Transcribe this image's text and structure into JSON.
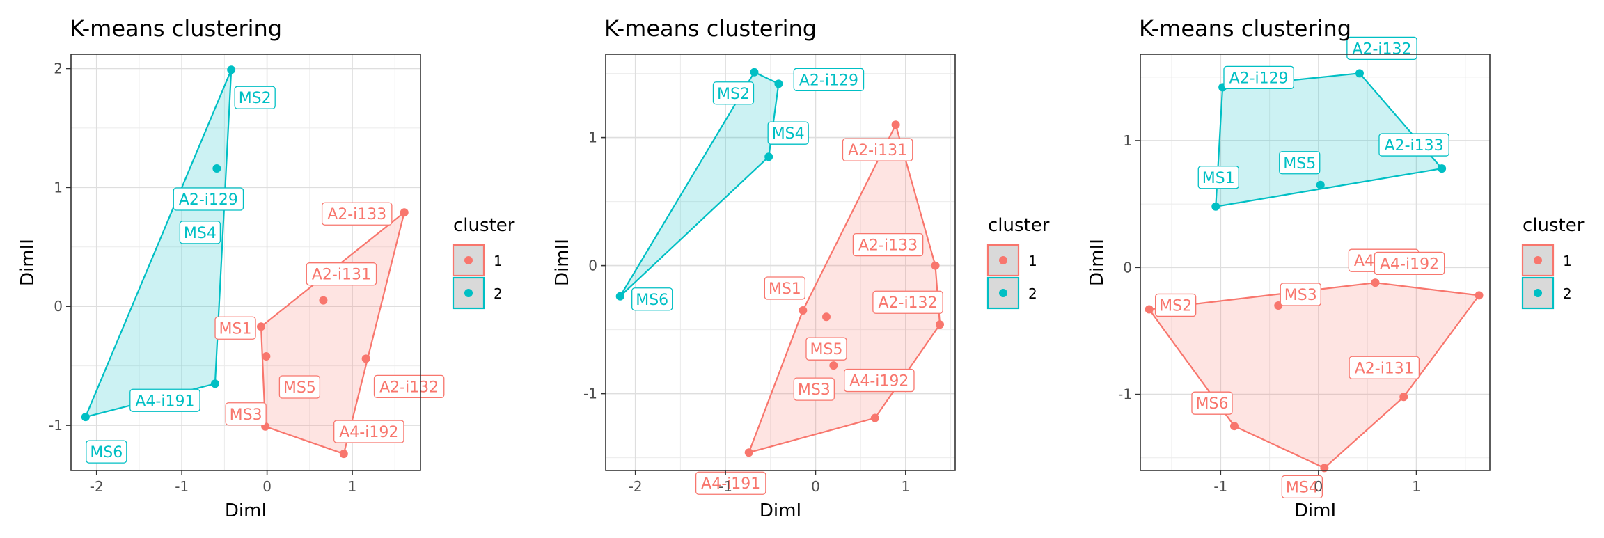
{
  "colors": {
    "cluster1": "#F8766D",
    "cluster1_fill": "#FFE1DF",
    "cluster2": "#00BFC4",
    "cluster2_fill": "#CCEFF1",
    "grid": "#EBEBEB",
    "panel_border": "#333333",
    "legend_key_bg": "#D9D9D9"
  },
  "chart_data": [
    {
      "type": "scatter",
      "title": "K-means clustering",
      "xlabel": "DimI",
      "ylabel": "DimII",
      "xlim": [
        -2.3,
        1.8
      ],
      "ylim": [
        -1.38,
        2.12
      ],
      "xticks": [
        -2,
        -1,
        0,
        1
      ],
      "yticks": [
        -1,
        0,
        1,
        2
      ],
      "grid": true,
      "legend": {
        "title": "cluster",
        "position": "right",
        "entries": [
          "1",
          "2"
        ]
      },
      "points": [
        {
          "label": "MS6",
          "x": -2.13,
          "y": -0.93,
          "cluster": "2"
        },
        {
          "label": "MS2",
          "x": -0.42,
          "y": 1.99,
          "cluster": "2"
        },
        {
          "label": "A2-i129",
          "x": -0.59,
          "y": 1.16,
          "cluster": "2"
        },
        {
          "label": "MS4",
          "x": -0.59,
          "y": 0.88,
          "cluster": "2"
        },
        {
          "label": "A4-i191",
          "x": -0.61,
          "y": -0.65,
          "cluster": "2"
        },
        {
          "label": "A2-i133",
          "x": 1.61,
          "y": 0.79,
          "cluster": "1"
        },
        {
          "label": "A2-i131",
          "x": 0.66,
          "y": 0.05,
          "cluster": "1"
        },
        {
          "label": "MS1",
          "x": -0.07,
          "y": -0.17,
          "cluster": "1"
        },
        {
          "label": "MS5",
          "x": -0.01,
          "y": -0.42,
          "cluster": "1"
        },
        {
          "label": "A2-i132",
          "x": 1.16,
          "y": -0.44,
          "cluster": "1"
        },
        {
          "label": "MS3",
          "x": -0.02,
          "y": -1.01,
          "cluster": "1"
        },
        {
          "label": "A4-i192",
          "x": 0.9,
          "y": -1.24,
          "cluster": "1"
        }
      ]
    },
    {
      "type": "scatter",
      "title": "K-means clustering",
      "xlabel": "DimI",
      "ylabel": "DimII",
      "xlim": [
        -2.33,
        1.55
      ],
      "ylim": [
        -1.6,
        1.65
      ],
      "xticks": [
        -2,
        -1,
        0,
        1
      ],
      "yticks": [
        -1,
        0,
        1
      ],
      "grid": true,
      "legend": {
        "title": "cluster",
        "position": "right",
        "entries": [
          "1",
          "2"
        ]
      },
      "points": [
        {
          "label": "MS6",
          "x": -2.17,
          "y": -0.24,
          "cluster": "2"
        },
        {
          "label": "MS2",
          "x": -0.68,
          "y": 1.51,
          "cluster": "2"
        },
        {
          "label": "A2-i129",
          "x": -0.41,
          "y": 1.42,
          "cluster": "2"
        },
        {
          "label": "MS4",
          "x": -0.52,
          "y": 0.85,
          "cluster": "2"
        },
        {
          "label": "A2-i131",
          "x": 0.89,
          "y": 1.1,
          "cluster": "1"
        },
        {
          "label": "A2-i133",
          "x": 1.33,
          "y": 0.0,
          "cluster": "1"
        },
        {
          "label": "MS1",
          "x": -0.14,
          "y": -0.35,
          "cluster": "1"
        },
        {
          "label": "MS5",
          "x": 0.12,
          "y": -0.4,
          "cluster": "1"
        },
        {
          "label": "A2-i132",
          "x": 1.38,
          "y": -0.46,
          "cluster": "1"
        },
        {
          "label": "MS3",
          "x": 0.2,
          "y": -0.78,
          "cluster": "1"
        },
        {
          "label": "A4-i192",
          "x": 0.66,
          "y": -1.19,
          "cluster": "1"
        },
        {
          "label": "A4-i191",
          "x": -0.74,
          "y": -1.46,
          "cluster": "1"
        }
      ]
    },
    {
      "type": "scatter",
      "title": "K-means clustering",
      "xlabel": "DimI",
      "ylabel": "DimII",
      "xlim": [
        -1.82,
        1.75
      ],
      "ylim": [
        -1.6,
        1.68
      ],
      "xticks": [
        -1,
        0,
        1
      ],
      "yticks": [
        -1,
        0,
        1
      ],
      "grid": true,
      "legend": {
        "title": "cluster",
        "position": "right",
        "entries": [
          "1",
          "2"
        ]
      },
      "points": [
        {
          "label": "MS1",
          "x": -1.05,
          "y": 0.48,
          "cluster": "2"
        },
        {
          "label": "A2-i129",
          "x": -0.98,
          "y": 1.42,
          "cluster": "2"
        },
        {
          "label": "A2-i132",
          "x": 0.42,
          "y": 1.53,
          "cluster": "2"
        },
        {
          "label": "A2-i133",
          "x": 1.26,
          "y": 0.78,
          "cluster": "2"
        },
        {
          "label": "MS5",
          "x": 0.02,
          "y": 0.65,
          "cluster": "2"
        },
        {
          "label": "MS2",
          "x": -1.73,
          "y": -0.33,
          "cluster": "1"
        },
        {
          "label": "MS3",
          "x": -0.41,
          "y": -0.3,
          "cluster": "1"
        },
        {
          "label": "A4-i191",
          "x": 0.58,
          "y": -0.12,
          "cluster": "1"
        },
        {
          "label": "A4-i192",
          "x": 1.64,
          "y": -0.22,
          "cluster": "1"
        },
        {
          "label": "A2-i131",
          "x": 0.87,
          "y": -1.02,
          "cluster": "1"
        },
        {
          "label": "MS4",
          "x": 0.06,
          "y": -1.58,
          "cluster": "1"
        },
        {
          "label": "MS6",
          "x": -0.86,
          "y": -1.25,
          "cluster": "1"
        }
      ]
    }
  ]
}
